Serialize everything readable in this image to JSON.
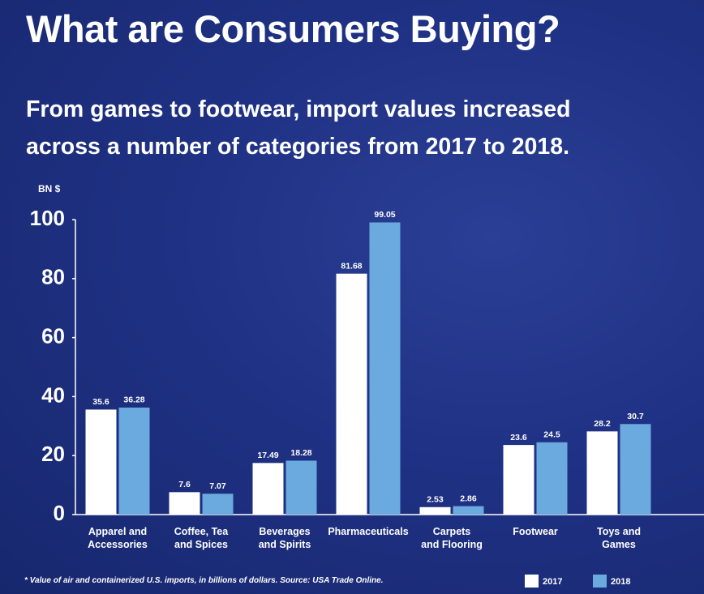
{
  "chart_data": {
    "type": "bar",
    "title": "What are Consumers Buying?",
    "subtitle": "From games to footwear, import values increased\nacross a number of categories from 2017 to 2018.",
    "y_label": "BN $",
    "footnote": "* Value of air and containerized U.S. imports, in billions of dollars. Source: USA Trade Online.",
    "categories": [
      "Apparel and\nAccessories",
      "Coffee, Tea\nand Spices",
      "Beverages\nand Spirits",
      "Pharmaceuticals",
      "Carpets\nand Flooring",
      "Footwear",
      "Toys and\nGames"
    ],
    "series": [
      {
        "name": "2017",
        "color": "#ffffff",
        "values": [
          35.6,
          7.6,
          17.49,
          81.68,
          2.53,
          23.6,
          28.2
        ]
      },
      {
        "name": "2018",
        "color": "#6aaade",
        "values": [
          36.28,
          7.07,
          18.28,
          99.05,
          2.86,
          24.5,
          30.7
        ]
      }
    ],
    "ylim": [
      0,
      100
    ],
    "yticks": [
      0,
      20,
      40,
      60,
      80,
      100
    ],
    "grid": false,
    "legend": "bottom-right"
  }
}
